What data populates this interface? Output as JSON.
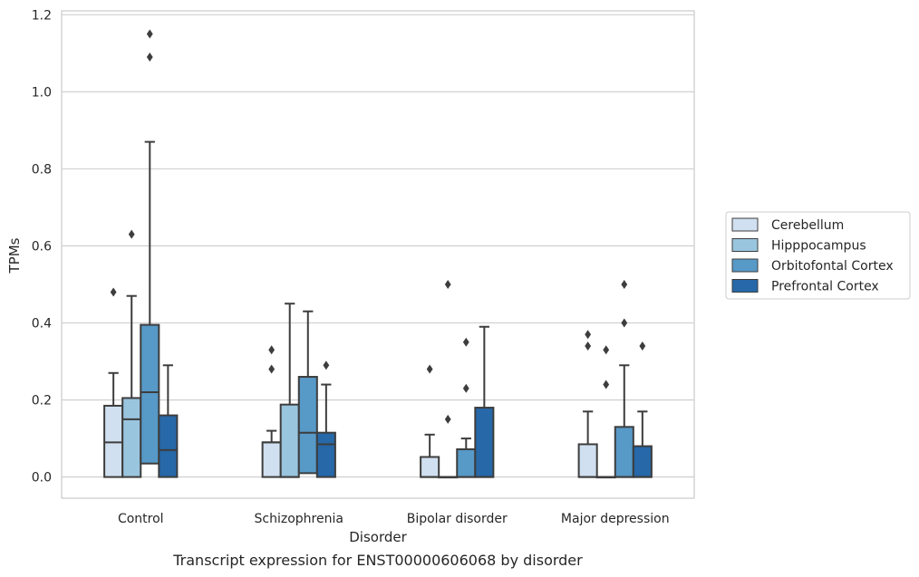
{
  "chart_data": {
    "type": "box",
    "title": "",
    "caption": "Transcript expression for ENST00000606068 by disorder",
    "xlabel": "Disorder",
    "ylabel": "TPMs",
    "ylim": [
      -0.055,
      1.21
    ],
    "yticks": [
      "0.0",
      "0.2",
      "0.4",
      "0.6",
      "0.8",
      "1.0",
      "1.2"
    ],
    "ytick_values": [
      0.0,
      0.2,
      0.4,
      0.6,
      0.8,
      1.0,
      1.2
    ],
    "grid": "horizontal",
    "legend_position": "right",
    "categories": [
      "Control",
      "Schizophrenia",
      "Bipolar disorder",
      "Major depression"
    ],
    "series": [
      {
        "name": "Cerebellum",
        "color": "#d0e0f0",
        "boxes": [
          {
            "low": 0.0,
            "q1": 0.0,
            "median": 0.09,
            "q3": 0.185,
            "high": 0.27,
            "outliers": [
              0.48
            ]
          },
          {
            "low": 0.0,
            "q1": 0.0,
            "median": 0.09,
            "q3": 0.09,
            "high": 0.12,
            "outliers": [
              0.28,
              0.33
            ]
          },
          {
            "low": 0.0,
            "q1": 0.0,
            "median": 0.0,
            "q3": 0.052,
            "high": 0.11,
            "outliers": [
              0.28
            ]
          },
          {
            "low": 0.0,
            "q1": 0.0,
            "median": 0.0,
            "q3": 0.085,
            "high": 0.17,
            "outliers": [
              0.34,
              0.37
            ]
          }
        ]
      },
      {
        "name": "Hipppocampus",
        "color": "#9ac5de",
        "boxes": [
          {
            "low": 0.0,
            "q1": 0.0,
            "median": 0.15,
            "q3": 0.205,
            "high": 0.47,
            "outliers": [
              0.63
            ]
          },
          {
            "low": 0.0,
            "q1": 0.0,
            "median": 0.0,
            "q3": 0.188,
            "high": 0.45,
            "outliers": []
          },
          {
            "low": 0.0,
            "q1": 0.0,
            "median": 0.0,
            "q3": 0.0,
            "high": 0.0,
            "outliers": [
              0.15,
              0.5
            ]
          },
          {
            "low": 0.0,
            "q1": 0.0,
            "median": 0.0,
            "q3": 0.0,
            "high": 0.0,
            "outliers": [
              0.24,
              0.33
            ]
          }
        ]
      },
      {
        "name": "Orbitofontal Cortex",
        "color": "#5799c7",
        "boxes": [
          {
            "low": 0.0,
            "q1": 0.035,
            "median": 0.22,
            "q3": 0.395,
            "high": 0.87,
            "outliers": [
              1.09,
              1.15
            ]
          },
          {
            "low": 0.0,
            "q1": 0.01,
            "median": 0.115,
            "q3": 0.26,
            "high": 0.43,
            "outliers": []
          },
          {
            "low": 0.0,
            "q1": 0.0,
            "median": 0.0,
            "q3": 0.072,
            "high": 0.1,
            "outliers": [
              0.23,
              0.35
            ]
          },
          {
            "low": 0.0,
            "q1": 0.0,
            "median": 0.0,
            "q3": 0.13,
            "high": 0.29,
            "outliers": [
              0.4,
              0.5
            ]
          }
        ]
      },
      {
        "name": "Prefrontal Cortex",
        "color": "#2668a8",
        "boxes": [
          {
            "low": 0.0,
            "q1": 0.0,
            "median": 0.07,
            "q3": 0.16,
            "high": 0.29,
            "outliers": []
          },
          {
            "low": 0.0,
            "q1": 0.0,
            "median": 0.085,
            "q3": 0.115,
            "high": 0.24,
            "outliers": [
              0.29
            ]
          },
          {
            "low": 0.0,
            "q1": 0.0,
            "median": 0.0,
            "q3": 0.18,
            "high": 0.39,
            "outliers": []
          },
          {
            "low": 0.0,
            "q1": 0.0,
            "median": 0.0,
            "q3": 0.08,
            "high": 0.17,
            "outliers": [
              0.34
            ]
          }
        ]
      }
    ]
  }
}
